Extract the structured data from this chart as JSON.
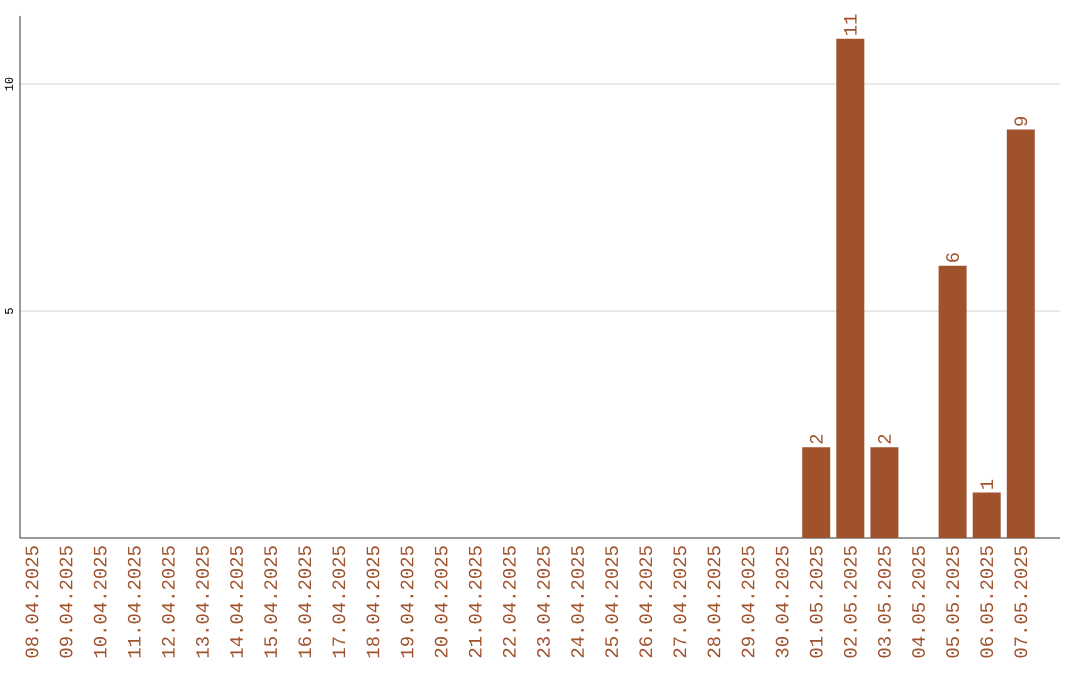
{
  "chart_data": {
    "type": "bar",
    "categories": [
      "08.04.2025",
      "09.04.2025",
      "10.04.2025",
      "11.04.2025",
      "12.04.2025",
      "13.04.2025",
      "14.04.2025",
      "15.04.2025",
      "16.04.2025",
      "17.04.2025",
      "18.04.2025",
      "19.04.2025",
      "20.04.2025",
      "21.04.2025",
      "22.04.2025",
      "23.04.2025",
      "24.04.2025",
      "25.04.2025",
      "26.04.2025",
      "27.04.2025",
      "28.04.2025",
      "29.04.2025",
      "30.04.2025",
      "01.05.2025",
      "02.05.2025",
      "03.05.2025",
      "04.05.2025",
      "05.05.2025",
      "06.05.2025",
      "07.05.2025"
    ],
    "values": [
      0,
      0,
      0,
      0,
      0,
      0,
      0,
      0,
      0,
      0,
      0,
      0,
      0,
      0,
      0,
      0,
      0,
      0,
      0,
      0,
      0,
      0,
      0,
      2,
      11,
      2,
      0,
      6,
      1,
      9
    ],
    "value_labels": [
      null,
      null,
      null,
      null,
      null,
      null,
      null,
      null,
      null,
      null,
      null,
      null,
      null,
      null,
      null,
      null,
      null,
      null,
      null,
      null,
      null,
      null,
      null,
      "2",
      "11",
      "2",
      null,
      "6",
      "1",
      "9"
    ],
    "color": "#a0522d",
    "ylim": [
      0,
      11.5
    ],
    "yticks": [
      5,
      10
    ],
    "grid": "y"
  }
}
